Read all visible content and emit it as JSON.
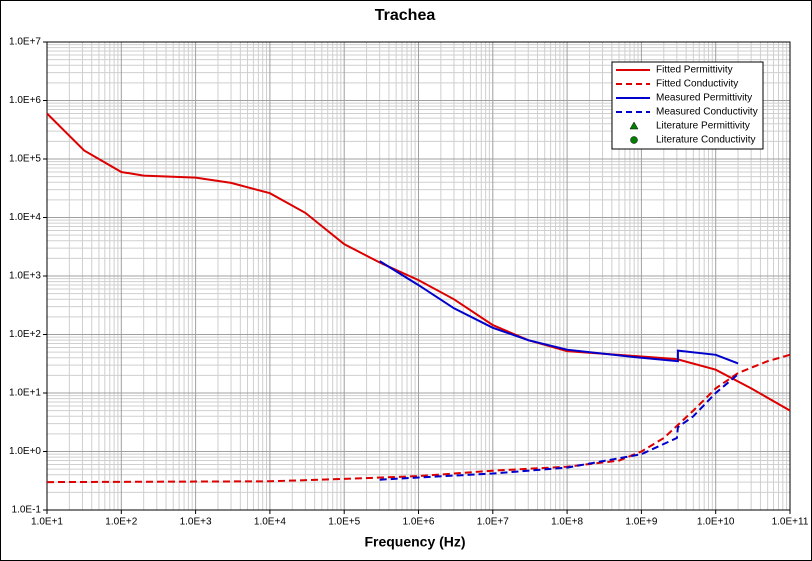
{
  "chart_data": {
    "type": "line",
    "title": "Trachea",
    "x_label": "Frequency (Hz)",
    "x_scale": "log",
    "y_scale": "log",
    "grid": true,
    "minor_grid": true,
    "legend_position": "upper right",
    "xlim": [
      10,
      100000000000
    ],
    "ylim": [
      0.1,
      10000000
    ],
    "xticks": [
      {
        "value": 10,
        "label": "1.0E+1"
      },
      {
        "value": 100,
        "label": "1.0E+2"
      },
      {
        "value": 1000,
        "label": "1.0E+3"
      },
      {
        "value": 10000,
        "label": "1.0E+4"
      },
      {
        "value": 100000,
        "label": "1.0E+5"
      },
      {
        "value": 1000000,
        "label": "1.0E+6"
      },
      {
        "value": 10000000,
        "label": "1.0E+7"
      },
      {
        "value": 100000000,
        "label": "1.0E+8"
      },
      {
        "value": 1000000000,
        "label": "1.0E+9"
      },
      {
        "value": 10000000000,
        "label": "1.0E+10"
      },
      {
        "value": 100000000000,
        "label": "1.0E+11"
      }
    ],
    "yticks": [
      {
        "value": 0.1,
        "label": "1.0E-1"
      },
      {
        "value": 1,
        "label": "1.0E+0"
      },
      {
        "value": 10,
        "label": "1.0E+1"
      },
      {
        "value": 100,
        "label": "1.0E+2"
      },
      {
        "value": 1000,
        "label": "1.0E+3"
      },
      {
        "value": 10000,
        "label": "1.0E+4"
      },
      {
        "value": 100000,
        "label": "1.0E+5"
      },
      {
        "value": 1000000,
        "label": "1.0E+6"
      },
      {
        "value": 10000000,
        "label": "1.0E+7"
      }
    ],
    "series": [
      {
        "name": "Fitted Permittivity",
        "color": "#dd0000",
        "dash": false,
        "marker": "none",
        "x": [
          10,
          31.6,
          100,
          200,
          1000,
          3000,
          10000,
          30000,
          100000,
          300000,
          1000000,
          3000000,
          10000000,
          30000000,
          100000000,
          1000000000,
          3000000000,
          10000000000,
          30000000000,
          100000000000
        ],
        "values": [
          600000,
          140000,
          60000,
          52000,
          48000,
          39000,
          26000,
          12000,
          3500,
          1700,
          850,
          400,
          145,
          80,
          52,
          42,
          38,
          25,
          12,
          5
        ]
      },
      {
        "name": "Fitted Conductivity",
        "color": "#dd0000",
        "dash": true,
        "marker": "none",
        "x": [
          10,
          10000,
          100000,
          1000000,
          10000000,
          100000000,
          500000000,
          1000000000,
          2000000000,
          5000000000,
          10000000000,
          20000000000,
          50000000000,
          100000000000
        ],
        "values": [
          0.3,
          0.31,
          0.34,
          0.38,
          0.47,
          0.55,
          0.7,
          1.0,
          1.7,
          5,
          12,
          22,
          35,
          45
        ]
      },
      {
        "name": "Measured Permittivity",
        "color": "#0000cc",
        "dash": false,
        "marker": "none",
        "x": [
          300000,
          1000000,
          3000000,
          10000000,
          30000000,
          100000000,
          1000000000,
          3100000000,
          3100000000,
          10000000000,
          20000000000
        ],
        "values": [
          1800,
          700,
          280,
          130,
          80,
          55,
          40,
          35,
          53,
          45,
          32
        ]
      },
      {
        "name": "Measured Conductivity",
        "color": "#0000cc",
        "dash": true,
        "marker": "none",
        "x": [
          300000,
          1000000,
          10000000,
          100000000,
          1000000000,
          3000000000,
          3100000000,
          5000000000,
          10000000000,
          20000000000
        ],
        "values": [
          0.33,
          0.36,
          0.42,
          0.53,
          0.9,
          1.7,
          2.6,
          4,
          10,
          21
        ]
      },
      {
        "name": "Literature Permittivity",
        "color": "#008000",
        "dash": false,
        "marker": "triangle",
        "x": [],
        "values": []
      },
      {
        "name": "Literature Conductivity",
        "color": "#008000",
        "dash": false,
        "marker": "circle",
        "x": [],
        "values": []
      }
    ]
  }
}
